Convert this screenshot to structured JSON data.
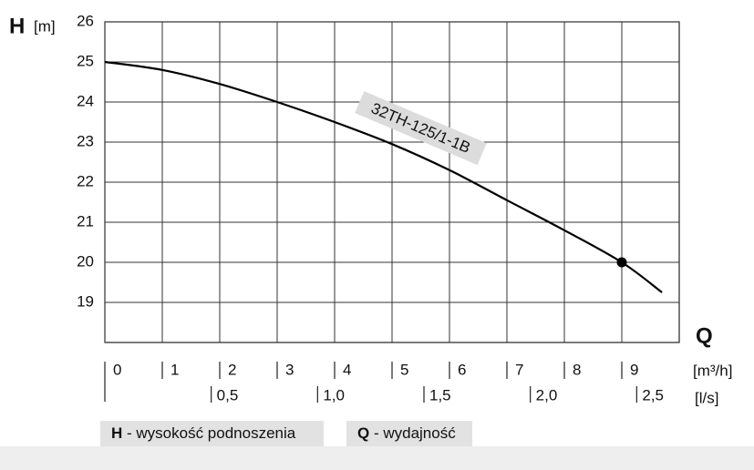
{
  "chart_data": {
    "type": "line",
    "y_label": "H",
    "y_unit": "[m]",
    "x_label": "Q",
    "x_unit": "[m³/h]",
    "x2_unit": "[l/s]",
    "x": [
      0,
      1,
      2,
      3,
      4,
      5,
      6,
      7,
      8,
      9,
      9.7
    ],
    "series": [
      {
        "name": "32TH-125/1-1B",
        "color": "#000000",
        "values": [
          25,
          24.8,
          24.45,
          24.0,
          23.5,
          22.95,
          22.3,
          21.55,
          20.8,
          20.0,
          19.25
        ]
      }
    ],
    "point": {
      "x": 9,
      "y": 20
    },
    "xlim": [
      0,
      10
    ],
    "xticks": [
      0,
      1,
      2,
      3,
      4,
      5,
      6,
      7,
      8,
      9
    ],
    "x2lim": [
      0,
      2.7
    ],
    "x2ticks": [
      {
        "value": 0.5,
        "label": "0,5"
      },
      {
        "value": 1.0,
        "label": "1,0"
      },
      {
        "value": 1.5,
        "label": "1,5"
      },
      {
        "value": 2.0,
        "label": "2,0"
      },
      {
        "value": 2.5,
        "label": "2,5"
      }
    ],
    "ylim": [
      18,
      26
    ],
    "yticks": [
      19,
      20,
      21,
      22,
      23,
      24,
      25,
      26
    ],
    "grid": true,
    "legend": [
      {
        "key": "H",
        "text": " - wysokość podnoszenia"
      },
      {
        "key": "Q",
        "text": " - wydajność"
      }
    ]
  }
}
